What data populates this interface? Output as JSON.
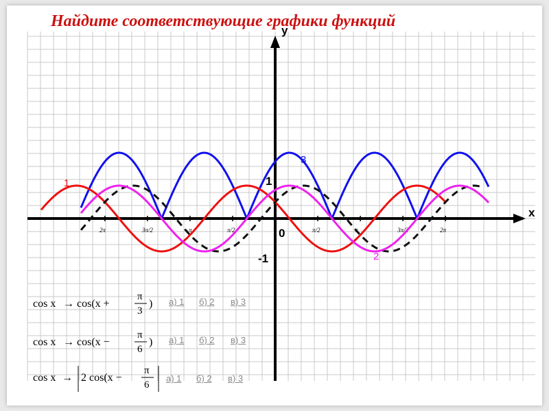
{
  "title": "Найдите соответствующие графики функций",
  "axes": {
    "x_label": "x",
    "y_label": "y",
    "origin_label": "0",
    "one_label": "1",
    "minus_one_label": "-1",
    "x_tick_labels": [
      "2π",
      "3π/2",
      "−π",
      "π/2",
      "π/2",
      "π",
      "3π/2",
      "2π"
    ]
  },
  "curve_labels": {
    "c1": "1",
    "c2": "2",
    "c3": "3"
  },
  "colors": {
    "grid": "#c8c8c8",
    "axis": "#000000",
    "red": "#ee1111",
    "magenta": "#ee22ee",
    "blue": "#1111ee",
    "dashed": "#111111",
    "title": "#cc1111",
    "options": "#8a8a8a"
  },
  "tasks": [
    {
      "formula": {
        "from": "cos x",
        "arrow": "→",
        "to": "cos(x +",
        "num": "π",
        "den": "3",
        "close": ")"
      },
      "options": [
        "а) 1",
        "б) 2",
        "в) 3"
      ]
    },
    {
      "formula": {
        "from": "cos x",
        "arrow": "→",
        "to": "cos(x −",
        "num": "π",
        "den": "6",
        "close": ")"
      },
      "options": [
        "а) 1",
        "б) 2",
        "в) 3"
      ]
    },
    {
      "formula": {
        "from": "cos x",
        "arrow": "→",
        "to": "2 cos(x  −",
        "num": "π",
        "den": "6",
        "close": ")"
      },
      "options": [
        "а) 1",
        "б) 2",
        "в) 3"
      ]
    }
  ]
}
